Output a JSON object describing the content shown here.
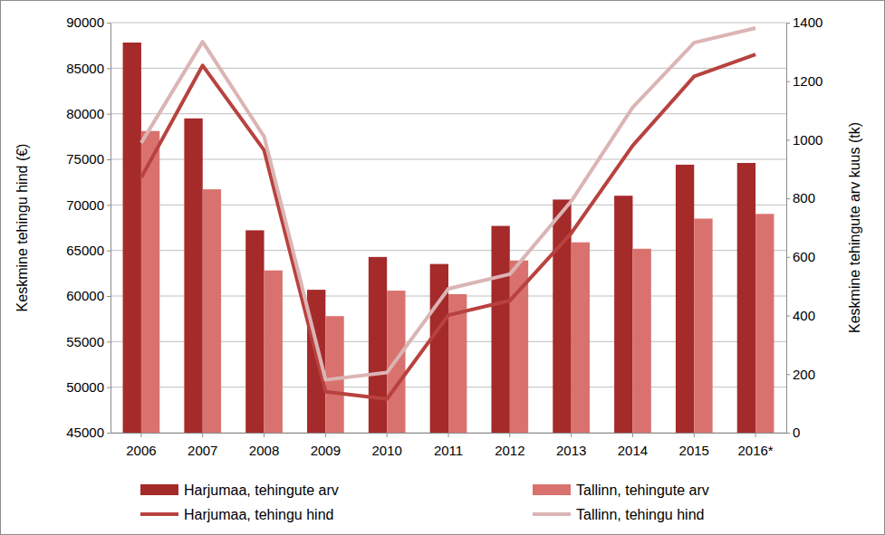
{
  "chart_data": {
    "type": "bar",
    "categories": [
      "2006",
      "2007",
      "2008",
      "2009",
      "2010",
      "2011",
      "2012",
      "2013",
      "2014",
      "2015",
      "2016*"
    ],
    "y_label": "Keskmine tehingu hind (€)",
    "y2_label": "Keskmine tehingute arv kuus (tk)",
    "ylim": [
      45000,
      90000
    ],
    "yticks": [
      45000,
      50000,
      55000,
      60000,
      65000,
      70000,
      75000,
      80000,
      85000,
      90000
    ],
    "y2lim": [
      0,
      1400
    ],
    "y2ticks": [
      0,
      200,
      400,
      600,
      800,
      1000,
      1200,
      1400
    ],
    "grid": true,
    "legend": "bottom",
    "series": [
      {
        "name": "Harjumaa, tehingute arv",
        "type": "bar",
        "axis": "y2",
        "color": "#a52a2a",
        "values": [
          1332,
          1073,
          691,
          488,
          600,
          576,
          706,
          796,
          809,
          915,
          921
        ]
      },
      {
        "name": "Tallinn, tehingute arv",
        "type": "bar",
        "axis": "y2",
        "color": "#d9726e",
        "values": [
          1030,
          831,
          554,
          398,
          485,
          473,
          588,
          650,
          628,
          731,
          747
        ]
      },
      {
        "name": "Harjumaa, tehingu hind",
        "type": "line",
        "color": "#b8423f",
        "values": [
          73000,
          85300,
          76000,
          49500,
          48700,
          57900,
          59500,
          66900,
          76500,
          84100,
          86500
        ]
      },
      {
        "name": "Tallinn, tehingu hind",
        "type": "line",
        "color": "#dbb4b4",
        "values": [
          76800,
          87900,
          77500,
          50800,
          51600,
          60800,
          62400,
          70400,
          80700,
          87800,
          89400
        ]
      }
    ]
  }
}
